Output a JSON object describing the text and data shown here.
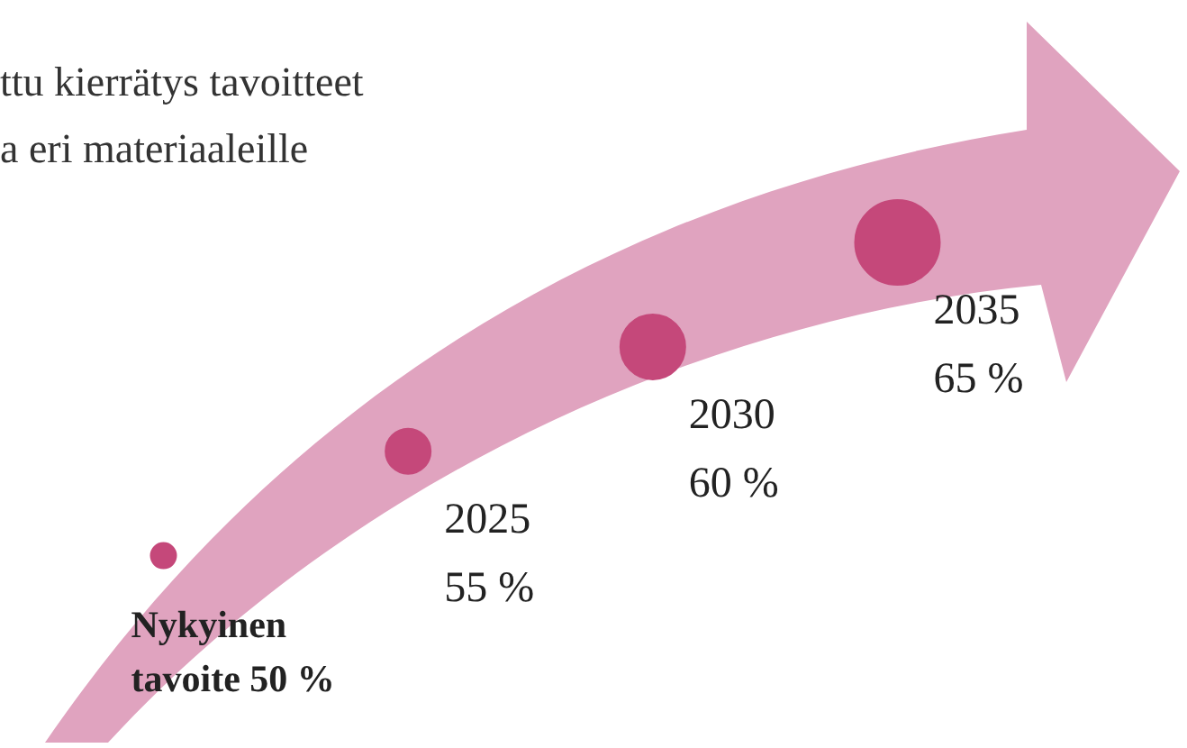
{
  "chart_data": {
    "type": "other",
    "title": "ttu kierrätys tavoitteet",
    "subtitle": "a eri materiaaleille",
    "categories": [
      "Nykyinen tavoite",
      "2025",
      "2030",
      "2035"
    ],
    "values": [
      50,
      55,
      60,
      65
    ],
    "value_labels": [
      "50 %",
      "55 %",
      "60 %",
      "65 %"
    ],
    "color": "#c5487a"
  }
}
